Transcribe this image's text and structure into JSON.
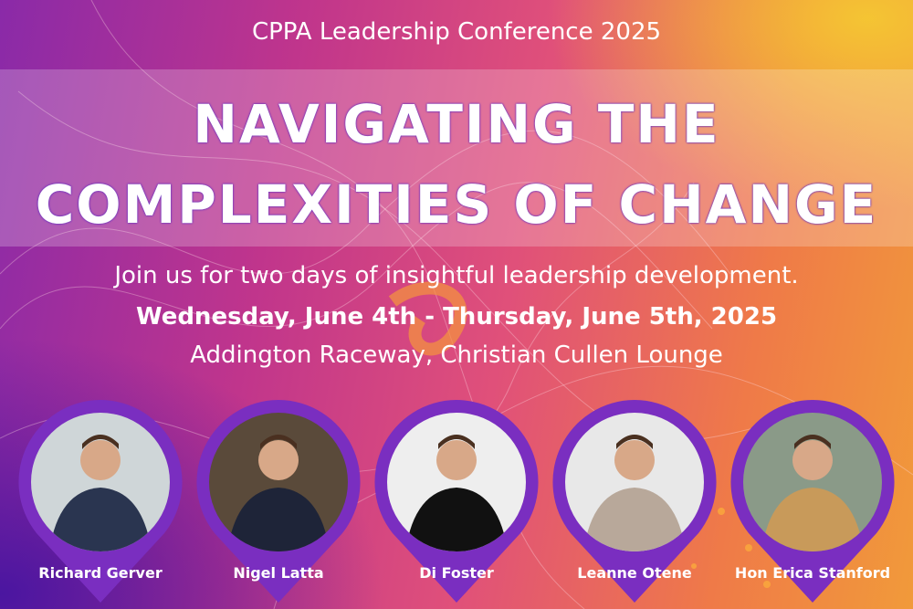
{
  "colors": {
    "pin": "#7a2ec0",
    "accent": "#f29a3a"
  },
  "event": {
    "series": "CPPA Leadership Conference 2025",
    "headline_line1": "NAVIGATING THE",
    "headline_line2": "COMPLEXITIES OF CHANGE",
    "tagline": "Join us for two days of insightful leadership development.",
    "dates": "Wednesday, June 4th - Thursday, June 5th, 2025",
    "venue": "Addington Raceway, Christian Cullen Lounge"
  },
  "speakers": [
    {
      "name": "Richard Gerver",
      "bg": "#cfd6d8",
      "suit": "#2a3550"
    },
    {
      "name": "Nigel Latta",
      "bg": "#5a4a3a",
      "suit": "#1e2438"
    },
    {
      "name": "Di Foster",
      "bg": "#eeeeee",
      "suit": "#111111"
    },
    {
      "name": "Leanne Otene",
      "bg": "#e8e8e8",
      "suit": "#b8a89a"
    },
    {
      "name": "Hon Erica Stanford",
      "bg": "#8a9a88",
      "suit": "#c89a5a"
    }
  ]
}
